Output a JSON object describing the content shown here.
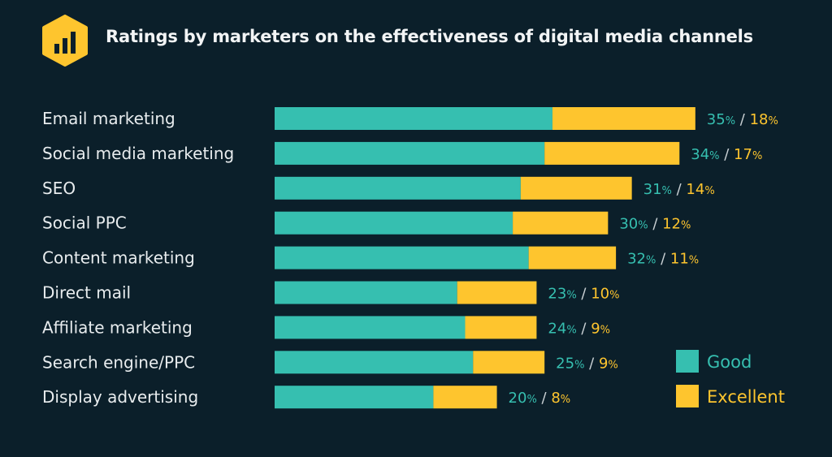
{
  "chart_data": {
    "type": "bar",
    "stacked": true,
    "orientation": "horizontal",
    "title": "Ratings by marketers on the effectiveness of digital media channels",
    "categories": [
      "Email marketing",
      "Social media marketing",
      "SEO",
      "Social PPC",
      "Content marketing",
      "Direct mail",
      "Affiliate marketing",
      "Search engine/PPC",
      "Display advertising"
    ],
    "series": [
      {
        "name": "Good",
        "color": "#36bfb0",
        "values": [
          35,
          34,
          31,
          30,
          32,
          23,
          24,
          25,
          20
        ]
      },
      {
        "name": "Excellent",
        "color": "#fec52e",
        "values": [
          18,
          17,
          14,
          12,
          11,
          10,
          9,
          9,
          8
        ]
      }
    ],
    "value_suffix": "%",
    "separator": "/",
    "legend_position": "bottom-right",
    "grid": false
  },
  "colors": {
    "background": "#0b1f2a",
    "title": "#f2f4f5",
    "logo": "#fec52e"
  },
  "logo_icon": "bar-chart-hexagon-icon"
}
